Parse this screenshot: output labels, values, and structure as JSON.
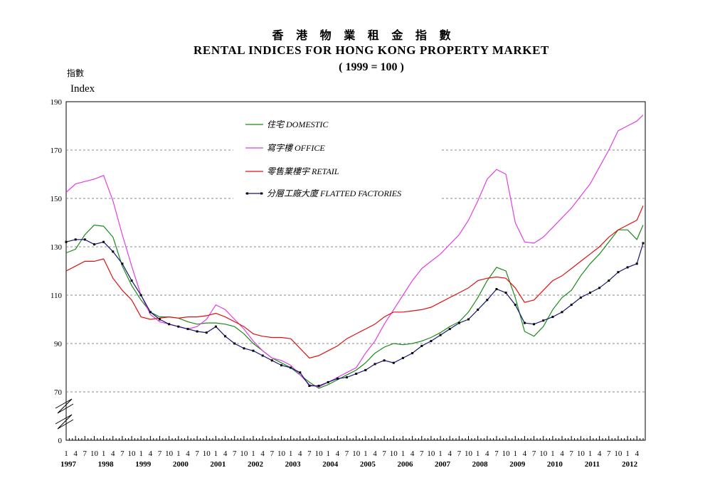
{
  "chart_data": {
    "type": "line",
    "title_zh": "香 港 物 業 租 金 指 數",
    "title": "RENTAL INDICES FOR HONG KONG PROPERTY MARKET",
    "subtitle": "( 1999 = 100 )",
    "ylabel_zh": "指數",
    "ylabel": "Index",
    "ylim": [
      0,
      190
    ],
    "yticks": [
      0,
      70,
      90,
      110,
      130,
      150,
      170,
      190
    ],
    "y_axis_break": [
      0,
      70
    ],
    "grid": "horizontal dashed",
    "legend_position": "upper-left",
    "x_month_labels": [
      "1",
      "4",
      "7",
      "10"
    ],
    "x_year_labels": [
      "1997",
      "1998",
      "1999",
      "2000",
      "2001",
      "2002",
      "2003",
      "2004",
      "2005",
      "2006",
      "2007",
      "2008",
      "2009",
      "2010",
      "2011",
      "2012"
    ],
    "x_start": "1997-01",
    "x_end": "2012-06",
    "series": [
      {
        "name": "住宅  DOMESTIC",
        "color": "#1a8a1a",
        "markers": false,
        "points": [
          [
            "1997-01",
            127.5
          ],
          [
            "1997-04",
            129
          ],
          [
            "1997-07",
            135
          ],
          [
            "1997-10",
            139
          ],
          [
            "1998-01",
            138.5
          ],
          [
            "1998-04",
            134
          ],
          [
            "1998-07",
            122
          ],
          [
            "1998-10",
            114
          ],
          [
            "1999-01",
            108
          ],
          [
            "1999-04",
            103
          ],
          [
            "1999-07",
            101
          ],
          [
            "1999-10",
            101
          ],
          [
            "2000-01",
            100.5
          ],
          [
            "2000-04",
            99
          ],
          [
            "2000-07",
            98
          ],
          [
            "2000-10",
            98.5
          ],
          [
            "2001-01",
            98.5
          ],
          [
            "2001-04",
            98
          ],
          [
            "2001-07",
            97
          ],
          [
            "2001-10",
            94
          ],
          [
            "2002-01",
            90
          ],
          [
            "2002-04",
            87
          ],
          [
            "2002-07",
            84
          ],
          [
            "2002-10",
            82
          ],
          [
            "2003-01",
            80
          ],
          [
            "2003-04",
            77
          ],
          [
            "2003-07",
            74
          ],
          [
            "2003-10",
            71.5
          ],
          [
            "2004-01",
            73
          ],
          [
            "2004-04",
            75
          ],
          [
            "2004-07",
            77
          ],
          [
            "2004-10",
            79
          ],
          [
            "2005-01",
            82
          ],
          [
            "2005-04",
            86
          ],
          [
            "2005-07",
            88.5
          ],
          [
            "2005-10",
            90
          ],
          [
            "2006-01",
            89.5
          ],
          [
            "2006-04",
            90
          ],
          [
            "2006-07",
            91
          ],
          [
            "2006-10",
            92.5
          ],
          [
            "2007-01",
            94.5
          ],
          [
            "2007-04",
            97
          ],
          [
            "2007-07",
            99
          ],
          [
            "2007-10",
            103
          ],
          [
            "2008-01",
            109
          ],
          [
            "2008-04",
            116
          ],
          [
            "2008-07",
            121.5
          ],
          [
            "2008-10",
            120
          ],
          [
            "2009-01",
            109
          ],
          [
            "2009-04",
            95
          ],
          [
            "2009-07",
            93
          ],
          [
            "2009-10",
            97
          ],
          [
            "2010-01",
            104
          ],
          [
            "2010-04",
            109
          ],
          [
            "2010-07",
            112
          ],
          [
            "2010-10",
            118
          ],
          [
            "2011-01",
            123
          ],
          [
            "2011-04",
            127
          ],
          [
            "2011-07",
            132
          ],
          [
            "2011-10",
            137
          ],
          [
            "2012-01",
            137
          ],
          [
            "2012-04",
            133
          ],
          [
            "2012-06",
            139
          ]
        ]
      },
      {
        "name": "寫字樓    OFFICE",
        "color": "#e23ee2",
        "markers": false,
        "points": [
          [
            "1997-01",
            152.5
          ],
          [
            "1997-04",
            156
          ],
          [
            "1997-07",
            157
          ],
          [
            "1997-10",
            158
          ],
          [
            "1998-01",
            159.5
          ],
          [
            "1998-04",
            149
          ],
          [
            "1998-07",
            135
          ],
          [
            "1998-10",
            122
          ],
          [
            "1999-01",
            110
          ],
          [
            "1999-04",
            102
          ],
          [
            "1999-07",
            99
          ],
          [
            "1999-10",
            98
          ],
          [
            "2000-01",
            97
          ],
          [
            "2000-04",
            96
          ],
          [
            "2000-07",
            97
          ],
          [
            "2000-10",
            100
          ],
          [
            "2001-01",
            106
          ],
          [
            "2001-04",
            104
          ],
          [
            "2001-07",
            100
          ],
          [
            "2001-10",
            96
          ],
          [
            "2002-01",
            91
          ],
          [
            "2002-04",
            87
          ],
          [
            "2002-07",
            84
          ],
          [
            "2002-10",
            83
          ],
          [
            "2003-01",
            81
          ],
          [
            "2003-04",
            77
          ],
          [
            "2003-07",
            73
          ],
          [
            "2003-10",
            72
          ],
          [
            "2004-01",
            74
          ],
          [
            "2004-04",
            76
          ],
          [
            "2004-07",
            78
          ],
          [
            "2004-10",
            80
          ],
          [
            "2005-01",
            86
          ],
          [
            "2005-04",
            91
          ],
          [
            "2005-07",
            98
          ],
          [
            "2005-10",
            104
          ],
          [
            "2006-01",
            110
          ],
          [
            "2006-04",
            116
          ],
          [
            "2006-07",
            121
          ],
          [
            "2006-10",
            124
          ],
          [
            "2007-01",
            127
          ],
          [
            "2007-04",
            131
          ],
          [
            "2007-07",
            135
          ],
          [
            "2007-10",
            141
          ],
          [
            "2008-01",
            149
          ],
          [
            "2008-04",
            158
          ],
          [
            "2008-07",
            162
          ],
          [
            "2008-10",
            160
          ],
          [
            "2009-01",
            140
          ],
          [
            "2009-04",
            132
          ],
          [
            "2009-07",
            131.5
          ],
          [
            "2009-10",
            134
          ],
          [
            "2010-01",
            138
          ],
          [
            "2010-04",
            142
          ],
          [
            "2010-07",
            146
          ],
          [
            "2010-10",
            151
          ],
          [
            "2011-01",
            156
          ],
          [
            "2011-04",
            163
          ],
          [
            "2011-07",
            170
          ],
          [
            "2011-10",
            178
          ],
          [
            "2012-01",
            180
          ],
          [
            "2012-04",
            182
          ],
          [
            "2012-06",
            184.5
          ]
        ]
      },
      {
        "name": "零售業樓宇  RETAIL",
        "color": "#e01010",
        "markers": false,
        "points": [
          [
            "1997-01",
            120
          ],
          [
            "1997-04",
            122
          ],
          [
            "1997-07",
            124
          ],
          [
            "1997-10",
            124
          ],
          [
            "1998-01",
            125
          ],
          [
            "1998-04",
            117
          ],
          [
            "1998-07",
            112
          ],
          [
            "1998-10",
            108
          ],
          [
            "1999-01",
            101
          ],
          [
            "1999-04",
            100
          ],
          [
            "1999-07",
            100.5
          ],
          [
            "1999-10",
            101
          ],
          [
            "2000-01",
            100.5
          ],
          [
            "2000-04",
            101
          ],
          [
            "2000-07",
            101
          ],
          [
            "2000-10",
            101.5
          ],
          [
            "2001-01",
            102.5
          ],
          [
            "2001-04",
            101
          ],
          [
            "2001-07",
            99
          ],
          [
            "2001-10",
            97
          ],
          [
            "2002-01",
            94
          ],
          [
            "2002-04",
            93
          ],
          [
            "2002-07",
            92.5
          ],
          [
            "2002-10",
            92.5
          ],
          [
            "2003-01",
            92
          ],
          [
            "2003-04",
            88
          ],
          [
            "2003-07",
            84
          ],
          [
            "2003-10",
            85
          ],
          [
            "2004-01",
            87
          ],
          [
            "2004-04",
            89
          ],
          [
            "2004-07",
            92
          ],
          [
            "2004-10",
            94
          ],
          [
            "2005-01",
            96
          ],
          [
            "2005-04",
            98
          ],
          [
            "2005-07",
            101
          ],
          [
            "2005-10",
            103
          ],
          [
            "2006-01",
            103
          ],
          [
            "2006-04",
            103.5
          ],
          [
            "2006-07",
            104
          ],
          [
            "2006-10",
            105
          ],
          [
            "2007-01",
            107
          ],
          [
            "2007-04",
            109
          ],
          [
            "2007-07",
            111
          ],
          [
            "2007-10",
            113
          ],
          [
            "2008-01",
            116
          ],
          [
            "2008-04",
            117
          ],
          [
            "2008-07",
            117.5
          ],
          [
            "2008-10",
            117
          ],
          [
            "2009-01",
            113
          ],
          [
            "2009-04",
            107
          ],
          [
            "2009-07",
            108
          ],
          [
            "2009-10",
            112
          ],
          [
            "2010-01",
            116
          ],
          [
            "2010-04",
            118
          ],
          [
            "2010-07",
            121
          ],
          [
            "2010-10",
            124
          ],
          [
            "2011-01",
            127
          ],
          [
            "2011-04",
            130
          ],
          [
            "2011-07",
            134
          ],
          [
            "2011-10",
            137
          ],
          [
            "2012-01",
            139
          ],
          [
            "2012-04",
            141
          ],
          [
            "2012-06",
            147
          ]
        ]
      },
      {
        "name": "分層工廠大廈  FLATTED FACTORIES",
        "color": "#15157a",
        "markers": true,
        "points": [
          [
            "1997-01",
            132
          ],
          [
            "1997-04",
            133
          ],
          [
            "1997-07",
            133
          ],
          [
            "1997-10",
            131
          ],
          [
            "1998-01",
            132
          ],
          [
            "1998-04",
            128
          ],
          [
            "1998-07",
            123
          ],
          [
            "1998-10",
            116
          ],
          [
            "1999-01",
            110
          ],
          [
            "1999-04",
            103
          ],
          [
            "1999-07",
            100
          ],
          [
            "1999-10",
            98
          ],
          [
            "2000-01",
            97
          ],
          [
            "2000-04",
            96
          ],
          [
            "2000-07",
            95
          ],
          [
            "2000-10",
            94.5
          ],
          [
            "2001-01",
            97
          ],
          [
            "2001-04",
            93
          ],
          [
            "2001-07",
            90
          ],
          [
            "2001-10",
            88
          ],
          [
            "2002-01",
            87
          ],
          [
            "2002-04",
            85
          ],
          [
            "2002-07",
            83
          ],
          [
            "2002-10",
            81
          ],
          [
            "2003-01",
            80
          ],
          [
            "2003-04",
            78
          ],
          [
            "2003-07",
            72.5
          ],
          [
            "2003-10",
            72.5
          ],
          [
            "2004-01",
            74
          ],
          [
            "2004-04",
            75.5
          ],
          [
            "2004-07",
            76
          ],
          [
            "2004-10",
            77.5
          ],
          [
            "2005-01",
            79
          ],
          [
            "2005-04",
            81.5
          ],
          [
            "2005-07",
            83
          ],
          [
            "2005-10",
            82
          ],
          [
            "2006-01",
            84
          ],
          [
            "2006-04",
            86
          ],
          [
            "2006-07",
            89
          ],
          [
            "2006-10",
            91
          ],
          [
            "2007-01",
            93.5
          ],
          [
            "2007-04",
            96
          ],
          [
            "2007-07",
            98.5
          ],
          [
            "2007-10",
            100
          ],
          [
            "2008-01",
            104
          ],
          [
            "2008-04",
            108
          ],
          [
            "2008-07",
            112.5
          ],
          [
            "2008-10",
            111
          ],
          [
            "2009-01",
            106
          ],
          [
            "2009-04",
            98.5
          ],
          [
            "2009-07",
            98
          ],
          [
            "2009-10",
            99.5
          ],
          [
            "2010-01",
            101
          ],
          [
            "2010-04",
            103
          ],
          [
            "2010-07",
            106
          ],
          [
            "2010-10",
            109
          ],
          [
            "2011-01",
            111
          ],
          [
            "2011-04",
            113
          ],
          [
            "2011-07",
            116
          ],
          [
            "2011-10",
            119.5
          ],
          [
            "2012-01",
            121.5
          ],
          [
            "2012-04",
            123
          ],
          [
            "2012-06",
            131.5
          ]
        ]
      }
    ]
  }
}
